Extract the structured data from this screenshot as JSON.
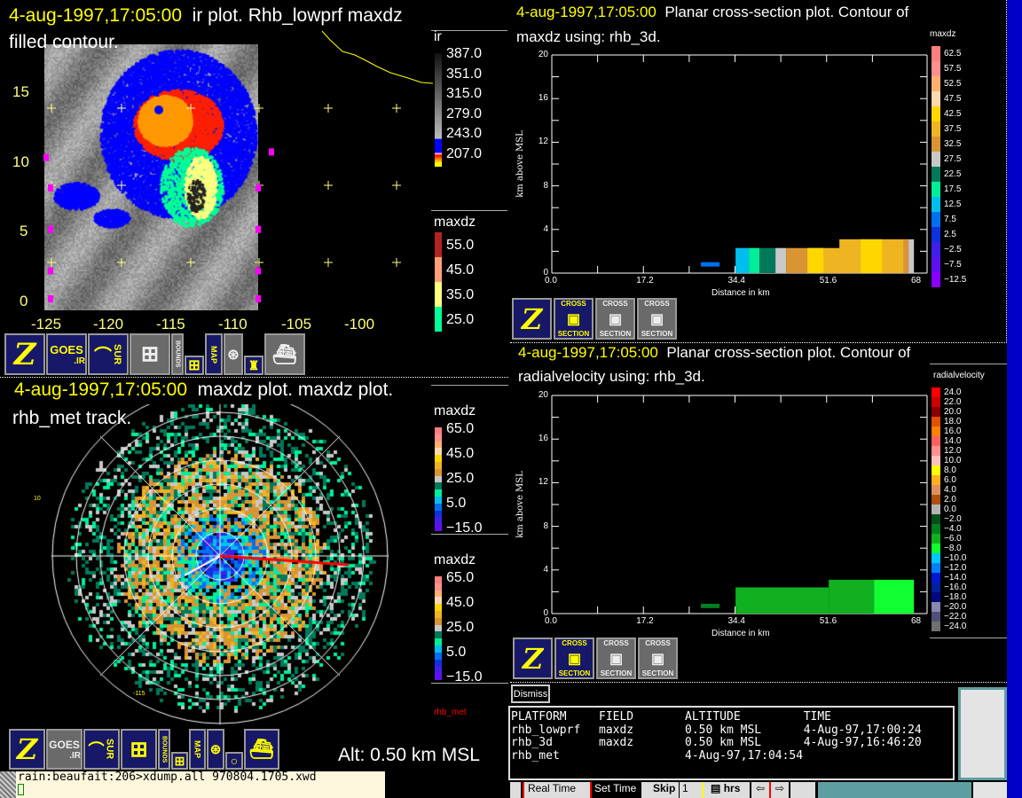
{
  "ir_panel": {
    "title_time": "4-aug-1997,17:05:00",
    "title_text": "ir plot.  Rhb_lowprf maxdz",
    "title_line2": "filled contour.",
    "y_ticks": [
      "15",
      "10",
      "5",
      "0"
    ],
    "x_ticks": [
      "-125",
      "-120",
      "-115",
      "-110",
      "-105",
      "-100"
    ],
    "legend_ir": {
      "label": "ir",
      "values": [
        "387.0",
        "351.0",
        "315.0",
        "279.0",
        "243.0",
        "207.0"
      ]
    },
    "legend_maxdz": {
      "label": "maxdz",
      "values": [
        "55.0",
        "45.0",
        "35.0",
        "25.0"
      ],
      "colors": [
        "#b22222",
        "#ffa07a",
        "#ffff80",
        "#00ff99"
      ]
    }
  },
  "radar_panel": {
    "title_time": "4-aug-1997,17:05:00",
    "title_text": "maxdz plot.  maxdz plot.",
    "title_line2": "rhb_met track.",
    "lat_label": "10",
    "lon_label": "-115",
    "legend1": {
      "label": "maxdz",
      "values": [
        "65.0",
        "45.0",
        "25.0",
        "5.0",
        "−15.0"
      ]
    },
    "legend2": {
      "label": "maxdz",
      "values": [
        "65.0",
        "45.0",
        "25.0",
        "5.0",
        "−15.0"
      ]
    },
    "platform": "rhb_met",
    "altitude": "Alt: 0.50 km MSL",
    "track_color": "#ff0000"
  },
  "maxdz_scale": {
    "colors": [
      "#ff7f7f",
      "#ff9090",
      "#ffb070",
      "#ffdab0",
      "#ffd700",
      "#eeb422",
      "#d99434",
      "#c8c8c8",
      "#00785a",
      "#00ee99",
      "#00bfee",
      "#0070ee",
      "#1030e0",
      "#4020e8",
      "#6010f0",
      "#8800ff"
    ]
  },
  "xsec1": {
    "title_time": "4-aug-1997,17:05:00",
    "title_text": "Planar cross-section plot.  Contour of",
    "title_line2": "maxdz using: rhb_3d.",
    "ylabel": "km above MSL",
    "xlabel": "Distance in km",
    "y_ticks": [
      "0",
      "4",
      "8",
      "12",
      "16",
      "20"
    ],
    "x_ticks": [
      "0.0",
      "17.2",
      "34.4",
      "51.6",
      "68"
    ],
    "legend": {
      "label": "maxdz",
      "values": [
        "62.5",
        "57.5",
        "52.5",
        "47.5",
        "42.5",
        "37.5",
        "32.5",
        "27.5",
        "22.5",
        "17.5",
        "12.5",
        "7.5",
        "2.5",
        "−2.5",
        "−7.5",
        "−12.5"
      ]
    }
  },
  "xsec2": {
    "title_time": "4-aug-1997,17:05:00",
    "title_text": "Planar cross-section plot.  Contour of",
    "title_line2": "radialvelocity using: rhb_3d.",
    "ylabel": "km above MSL",
    "xlabel": "Distance in km",
    "y_ticks": [
      "0",
      "4",
      "8",
      "12",
      "16",
      "20"
    ],
    "x_ticks": [
      "0.0",
      "17.2",
      "34.4",
      "51.6",
      "68"
    ],
    "legend": {
      "label": "radialvelocity",
      "values": [
        "24.0",
        "22.0",
        "20.0",
        "18.0",
        "16.0",
        "14.0",
        "12.0",
        "10.0",
        "8.0",
        "6.0",
        "4.0",
        "2.0",
        "0.0",
        "−2.0",
        "−4.0",
        "−6.0",
        "−8.0",
        "−10.0",
        "−12.0",
        "−14.0",
        "−16.0",
        "−18.0",
        "−20.0",
        "−22.0",
        "−24.0"
      ],
      "colors": [
        "#ff0000",
        "#cc0000",
        "#8b0000",
        "#e05000",
        "#ff7f00",
        "#ff6060",
        "#ff9090",
        "#ffc0c0",
        "#ffff00",
        "#ffb020",
        "#e09060",
        "#b05010",
        "#b4b4b4",
        "#005018",
        "#008020",
        "#10b020",
        "#10ff30",
        "#00c8ff",
        "#0080ff",
        "#0018d0",
        "#0020a0",
        "#000880",
        "#8888b0",
        "#505078",
        "#707070"
      ]
    }
  },
  "toolbar": {
    "goes": "GOES",
    "ir": ".IR",
    "sur": "SUR",
    "bounds": "BOUNDS",
    "map": "MAP",
    "cross": "CROSS",
    "section": "SECTION"
  },
  "info": {
    "dismiss": "Dismiss",
    "headers": [
      "PLATFORM",
      "FIELD",
      "ALTITUDE",
      "TIME"
    ],
    "rows": [
      [
        "rhb_lowprf",
        "maxdz",
        "0.50 km MSL",
        "4-Aug-97,17:00:24"
      ],
      [
        "rhb_3d",
        "maxdz",
        "0.50 km MSL",
        "4-Aug-97,16:46:20"
      ],
      [
        "rhb_met",
        "",
        "4-Aug-97,17:04:54",
        ""
      ]
    ]
  },
  "terminal": {
    "line": "rain:beaufait:206>xdump.all 970804.1705.xwd"
  },
  "bottom_bar": {
    "real_time": "Real Time",
    "set_time": "Set Time",
    "skip": "Skip",
    "skip_value": "1",
    "units": "hrs"
  }
}
